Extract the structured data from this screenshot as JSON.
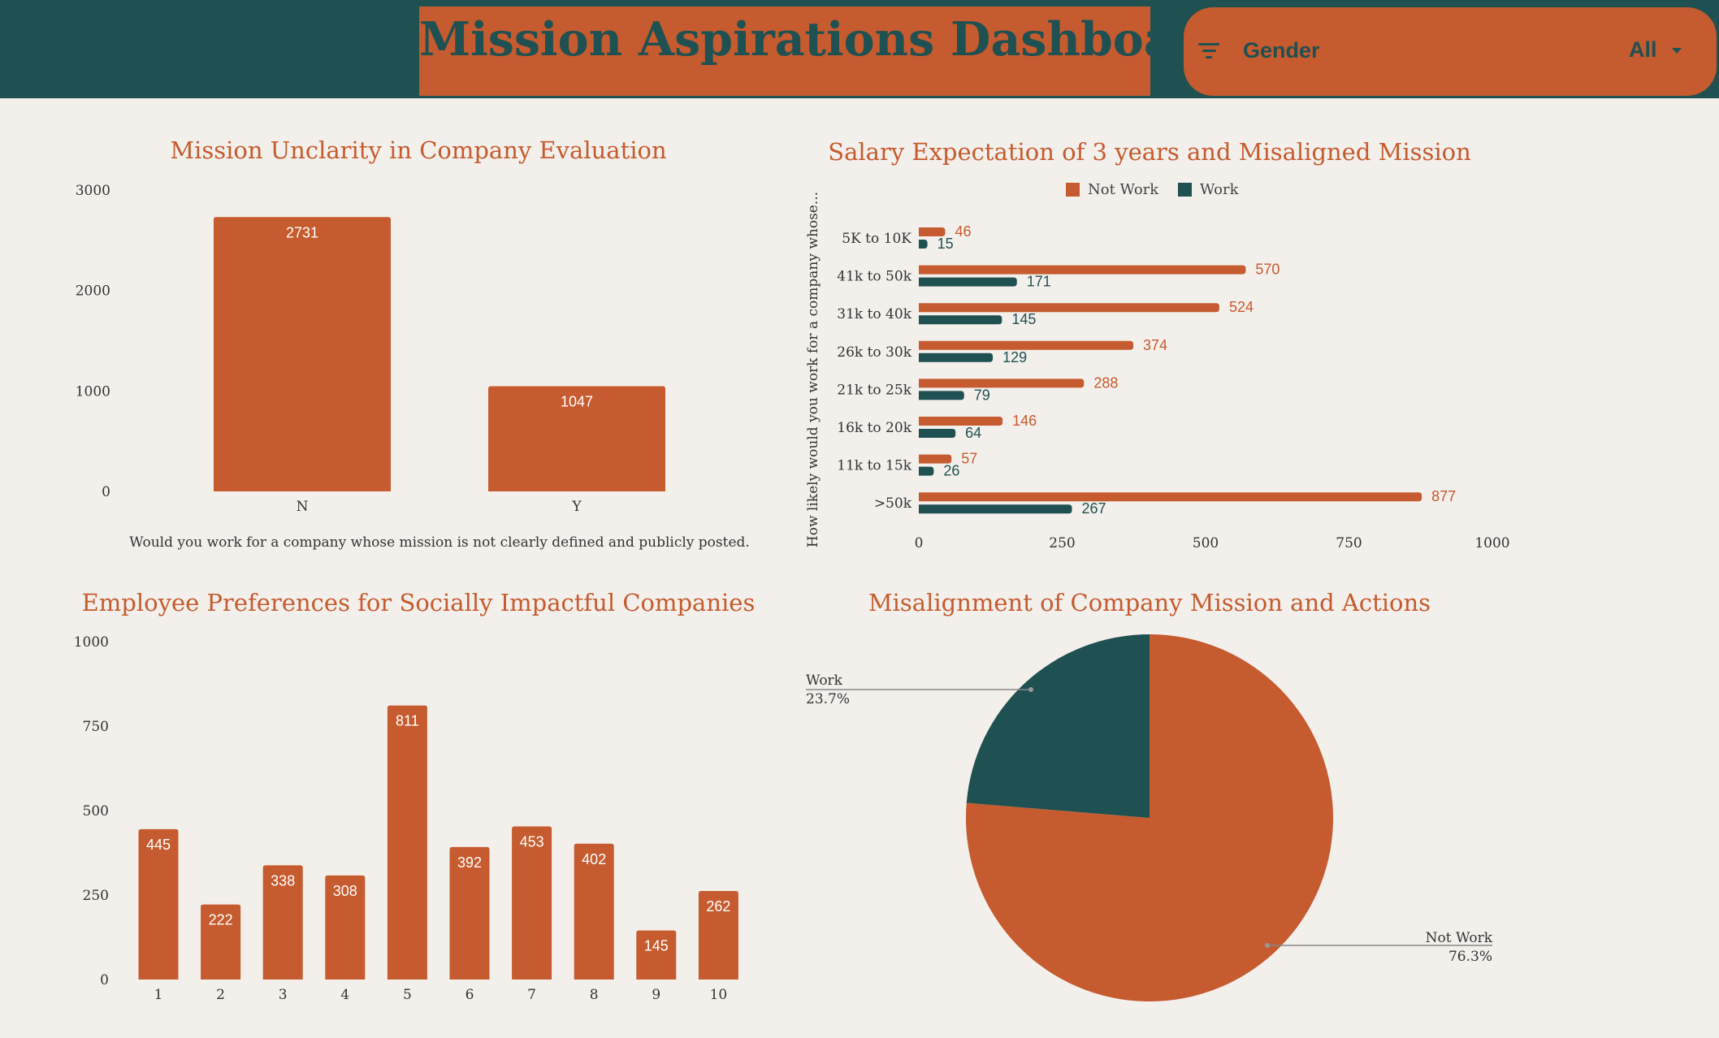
{
  "header": {
    "title": "Mission Aspirations Dashboard"
  },
  "filter": {
    "icon": "filter-icon",
    "label": "Gender",
    "value": "All"
  },
  "colors": {
    "orange": "#c55b2e",
    "teal": "#1f5052",
    "background": "#f3efeb"
  },
  "chart_data": [
    {
      "id": "mission-unclarity",
      "type": "bar",
      "title": "Mission Unclarity in Company Evaluation",
      "xlabel": "Would you work for a company whose mission is not clearly defined and publicly posted.",
      "ylabel": "",
      "categories": [
        "N",
        "Y"
      ],
      "values": [
        2731,
        1047
      ],
      "ylim": [
        0,
        3000
      ],
      "yticks": [
        0,
        1000,
        2000,
        3000
      ],
      "color": "#c55b2e"
    },
    {
      "id": "salary-expectation",
      "type": "bar",
      "orientation": "horizontal",
      "title": "Salary Expectation of 3 years and Misaligned Mission",
      "ylabel": "How likely would you work for a company whose...",
      "categories": [
        "5K to 10K",
        "41k to 50k",
        "31k to 40k",
        "26k to 30k",
        "21k to 25k",
        "16k to 20k",
        "11k to 15k",
        ">50k"
      ],
      "series": [
        {
          "name": "Not Work",
          "color": "#c55b2e",
          "values": [
            46,
            570,
            524,
            374,
            288,
            146,
            57,
            877
          ]
        },
        {
          "name": "Work",
          "color": "#1f5052",
          "values": [
            15,
            171,
            145,
            129,
            79,
            64,
            26,
            267
          ]
        }
      ],
      "xlim": [
        0,
        1000
      ],
      "xticks": [
        0,
        250,
        500,
        750,
        1000
      ],
      "legend": "top"
    },
    {
      "id": "social-impact",
      "type": "bar",
      "title": "Employee Preferences for Socially Impactful Companies",
      "categories": [
        "1",
        "2",
        "3",
        "4",
        "5",
        "6",
        "7",
        "8",
        "9",
        "10"
      ],
      "values": [
        445,
        222,
        338,
        308,
        811,
        392,
        453,
        402,
        145,
        262
      ],
      "ylim": [
        0,
        1000
      ],
      "yticks": [
        0,
        250,
        500,
        750,
        1000
      ],
      "color": "#c55b2e"
    },
    {
      "id": "misalignment",
      "type": "pie",
      "title": "Misalignment of Company Mission and Actions",
      "slices": [
        {
          "label": "Not Work",
          "percent_label": "76.3%",
          "value": 76.3,
          "color": "#c55b2e"
        },
        {
          "label": "Work",
          "percent_label": "23.7%",
          "value": 23.7,
          "color": "#1f5052"
        }
      ]
    }
  ]
}
